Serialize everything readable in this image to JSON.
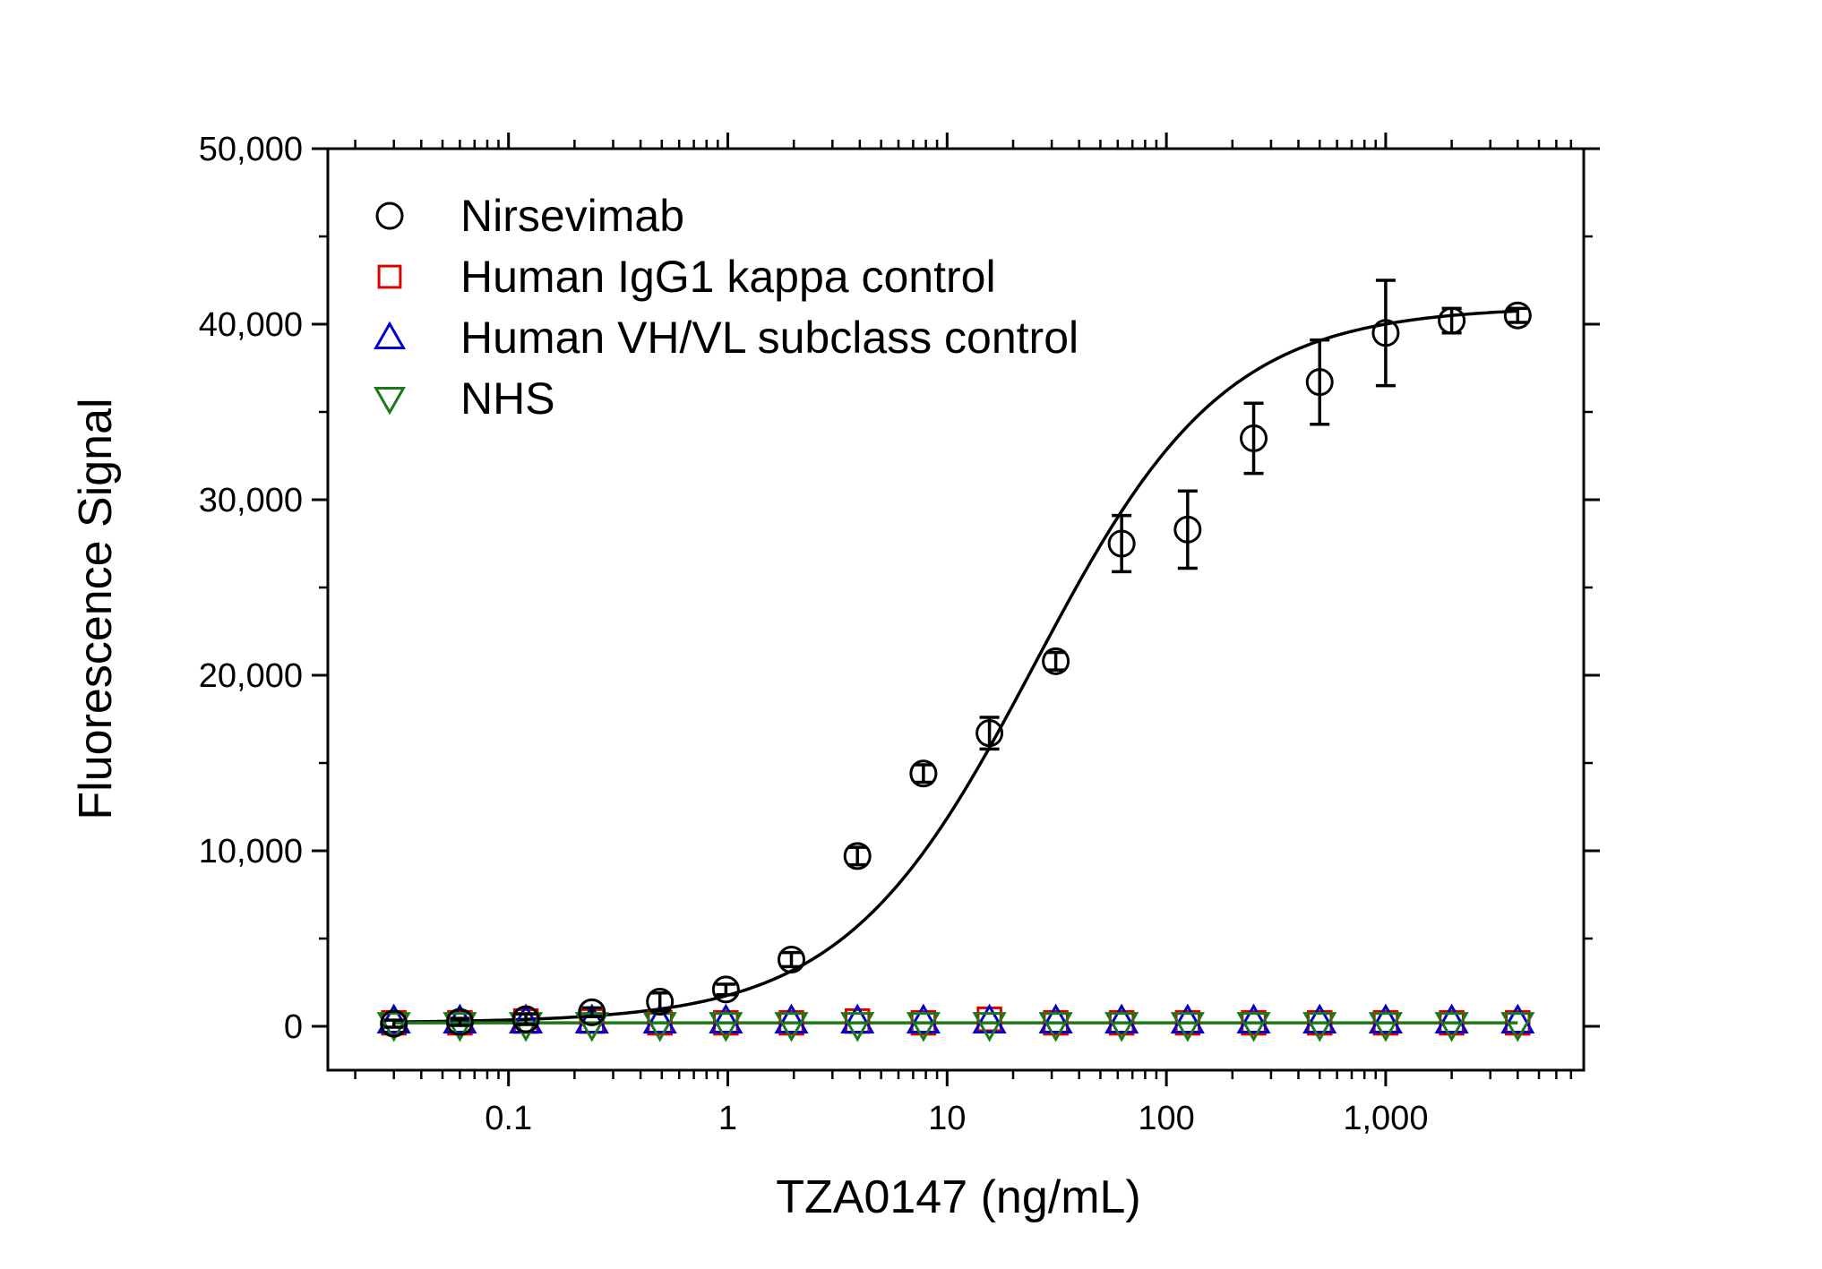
{
  "chart_data": {
    "type": "scatter",
    "xlabel": "TZA0147 (ng/mL)",
    "ylabel": "Fluorescence Signal",
    "x_scale": "log",
    "xlim": [
      0.015,
      8000
    ],
    "ylim": [
      -2500,
      50000
    ],
    "x_tick_labels": [
      {
        "value": 0.1,
        "label": "0.1"
      },
      {
        "value": 1,
        "label": "1"
      },
      {
        "value": 10,
        "label": "10"
      },
      {
        "value": 100,
        "label": "100"
      },
      {
        "value": 1000,
        "label": "1,000"
      }
    ],
    "y_tick_labels": [
      {
        "value": 0,
        "label": "0"
      },
      {
        "value": 10000,
        "label": "10,000"
      },
      {
        "value": 20000,
        "label": "20,000"
      },
      {
        "value": 30000,
        "label": "30,000"
      },
      {
        "value": 40000,
        "label": "40,000"
      },
      {
        "value": 50000,
        "label": "50,000"
      }
    ],
    "legend_position": "top-left",
    "grid": false,
    "x": [
      0.03,
      0.06,
      0.12,
      0.24,
      0.49,
      0.98,
      1.95,
      3.9,
      7.8,
      15.6,
      31.3,
      62.5,
      125,
      250,
      500,
      1000,
      2000,
      4000
    ],
    "series": [
      {
        "name": "Nirsevimab",
        "marker": "circle",
        "color": "#000000",
        "values": [
          150,
          250,
          400,
          800,
          1400,
          2100,
          3800,
          9700,
          14400,
          16700,
          20800,
          27500,
          28300,
          33500,
          36700,
          39500,
          40200,
          40500
        ],
        "errors": [
          200,
          200,
          300,
          250,
          500,
          300,
          400,
          500,
          500,
          900,
          500,
          1600,
          2200,
          2000,
          2400,
          3000,
          700,
          400
        ]
      },
      {
        "name": "Human IgG1 kappa control",
        "marker": "square",
        "color": "#e00000",
        "values": [
          200,
          200,
          300,
          300,
          200,
          200,
          200,
          300,
          200,
          400,
          200,
          200,
          200,
          200,
          200,
          200,
          200,
          200
        ]
      },
      {
        "name": "Human VH/VL subclass control",
        "marker": "triangle-up",
        "color": "#0000cc",
        "values": [
          300,
          300,
          300,
          300,
          300,
          300,
          300,
          300,
          300,
          300,
          300,
          300,
          300,
          300,
          300,
          300,
          300,
          300
        ]
      },
      {
        "name": "NHS",
        "marker": "triangle-down",
        "color": "#1a7a1a",
        "values": [
          100,
          100,
          100,
          100,
          100,
          100,
          100,
          100,
          100,
          100,
          100,
          100,
          100,
          100,
          100,
          100,
          100,
          100
        ]
      }
    ],
    "fit_curves": [
      {
        "series": "Nirsevimab",
        "color": "#000000",
        "bottom": 200,
        "top": 41000,
        "ec50": 25,
        "hill": 1.0
      },
      {
        "series": "NHS",
        "color": "#1a7a1a",
        "bottom": 200,
        "top": 200,
        "ec50": 25,
        "hill": 1.0
      }
    ]
  }
}
